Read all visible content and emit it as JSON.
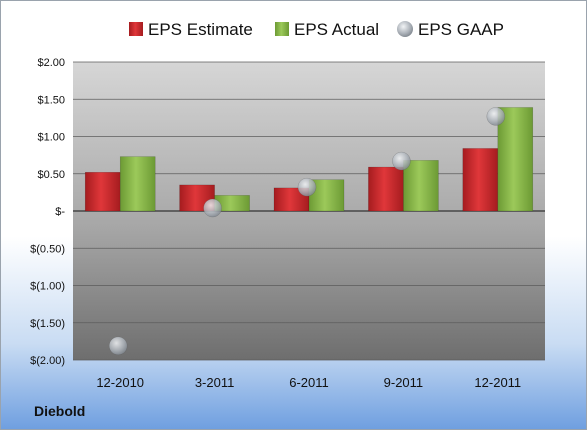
{
  "company": "Diebold",
  "chart_data": {
    "type": "bar",
    "categories": [
      "12-2010",
      "3-2011",
      "6-2011",
      "9-2011",
      "12-2011"
    ],
    "series": [
      {
        "name": "EPS Estimate",
        "kind": "bar",
        "color": "#d42a2e",
        "values": [
          0.52,
          0.35,
          0.31,
          0.59,
          0.84
        ]
      },
      {
        "name": "EPS Actual",
        "kind": "bar",
        "color": "#8cb84a",
        "values": [
          0.73,
          0.21,
          0.42,
          0.68,
          1.39
        ]
      },
      {
        "name": "EPS GAAP",
        "kind": "scatter",
        "color": "#b8bfc8",
        "values": [
          -1.81,
          0.04,
          0.32,
          0.67,
          1.27
        ]
      }
    ],
    "ylim": [
      -2.0,
      2.0
    ],
    "yticks": [
      2.0,
      1.5,
      1.0,
      0.5,
      0.0,
      -0.5,
      -1.0,
      -1.5,
      -2.0
    ],
    "ytick_labels": [
      "$2.00",
      "$1.50",
      "$1.00",
      "$0.50",
      "$-",
      "$(0.50)",
      "$(1.00)",
      "$(1.50)",
      "$(2.00)"
    ],
    "grid": true,
    "legend": "top"
  }
}
